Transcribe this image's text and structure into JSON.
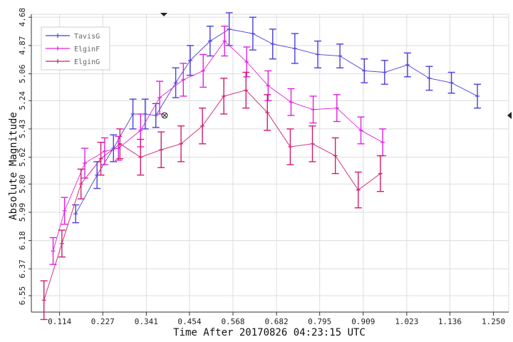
{
  "chart_data": {
    "type": "line",
    "xlabel": "Time After 20170826 04:23:15 UTC",
    "ylabel": "Absolute Magnitude",
    "xlim": [
      0.04,
      1.29
    ],
    "ylim": [
      6.66,
      4.66
    ],
    "y_inverted": true,
    "x_ticks": [
      "0.114",
      "0.227",
      "0.341",
      "0.454",
      "0.568",
      "0.682",
      "0.795",
      "0.909",
      "1.023",
      "1.136",
      "1.250"
    ],
    "y_ticks": [
      "4.68",
      "4.87",
      "5.06",
      "5.24",
      "5.43",
      "5.62",
      "5.80",
      "5.99",
      "6.18",
      "6.37",
      "6.55"
    ],
    "grid": true,
    "legend_position": "top-left",
    "colors": {
      "TavisG": "#4a3fdc",
      "ElginF": "#e020e0",
      "ElginG": "#d01c70",
      "grid": "#dcdcdc",
      "axis": "#333333"
    },
    "series": [
      {
        "name": "TavisG",
        "points": [
          {
            "x": 0.156,
            "y": 6.0,
            "err": 0.06
          },
          {
            "x": 0.212,
            "y": 5.74,
            "err": 0.09
          },
          {
            "x": 0.255,
            "y": 5.56,
            "err": 0.09
          },
          {
            "x": 0.306,
            "y": 5.33,
            "err": 0.1
          },
          {
            "x": 0.338,
            "y": 5.33,
            "err": 0.1
          },
          {
            "x": 0.366,
            "y": 5.34,
            "err": 0.08
          },
          {
            "x": 0.418,
            "y": 5.12,
            "err": 0.1
          },
          {
            "x": 0.456,
            "y": 4.97,
            "err": 0.1
          },
          {
            "x": 0.508,
            "y": 4.84,
            "err": 0.1
          },
          {
            "x": 0.558,
            "y": 4.76,
            "err": 0.11
          },
          {
            "x": 0.62,
            "y": 4.79,
            "err": 0.11
          },
          {
            "x": 0.672,
            "y": 4.86,
            "err": 0.1
          },
          {
            "x": 0.73,
            "y": 4.89,
            "err": 0.1
          },
          {
            "x": 0.79,
            "y": 4.93,
            "err": 0.09
          },
          {
            "x": 0.848,
            "y": 4.94,
            "err": 0.08
          },
          {
            "x": 0.912,
            "y": 5.04,
            "err": 0.08
          },
          {
            "x": 0.965,
            "y": 5.05,
            "err": 0.08
          },
          {
            "x": 1.025,
            "y": 5.0,
            "err": 0.08
          },
          {
            "x": 1.082,
            "y": 5.09,
            "err": 0.08
          },
          {
            "x": 1.14,
            "y": 5.12,
            "err": 0.07
          },
          {
            "x": 1.208,
            "y": 5.21,
            "err": 0.08
          }
        ]
      },
      {
        "name": "ElginF",
        "points": [
          {
            "x": 0.097,
            "y": 6.25,
            "err": 0.09
          },
          {
            "x": 0.127,
            "y": 5.98,
            "err": 0.09
          },
          {
            "x": 0.18,
            "y": 5.66,
            "err": 0.1
          },
          {
            "x": 0.232,
            "y": 5.58,
            "err": 0.09
          },
          {
            "x": 0.268,
            "y": 5.56,
            "err": 0.08
          },
          {
            "x": 0.326,
            "y": 5.44,
            "err": 0.11
          },
          {
            "x": 0.376,
            "y": 5.22,
            "err": 0.11
          },
          {
            "x": 0.438,
            "y": 5.1,
            "err": 0.11
          },
          {
            "x": 0.49,
            "y": 5.04,
            "err": 0.11
          },
          {
            "x": 0.546,
            "y": 4.84,
            "err": 0.1
          },
          {
            "x": 0.604,
            "y": 4.98,
            "err": 0.1
          },
          {
            "x": 0.66,
            "y": 5.14,
            "err": 0.1
          },
          {
            "x": 0.72,
            "y": 5.25,
            "err": 0.09
          },
          {
            "x": 0.778,
            "y": 5.3,
            "err": 0.09
          },
          {
            "x": 0.84,
            "y": 5.29,
            "err": 0.09
          },
          {
            "x": 0.903,
            "y": 5.44,
            "err": 0.09
          },
          {
            "x": 0.96,
            "y": 5.52,
            "err": 0.09
          }
        ]
      },
      {
        "name": "ElginG",
        "points": [
          {
            "x": 0.073,
            "y": 6.58,
            "err": 0.13
          },
          {
            "x": 0.12,
            "y": 6.2,
            "err": 0.09
          },
          {
            "x": 0.17,
            "y": 5.8,
            "err": 0.1
          },
          {
            "x": 0.222,
            "y": 5.63,
            "err": 0.11
          },
          {
            "x": 0.272,
            "y": 5.53,
            "err": 0.1
          },
          {
            "x": 0.326,
            "y": 5.62,
            "err": 0.12
          },
          {
            "x": 0.38,
            "y": 5.57,
            "err": 0.12
          },
          {
            "x": 0.432,
            "y": 5.53,
            "err": 0.12
          },
          {
            "x": 0.488,
            "y": 5.41,
            "err": 0.12
          },
          {
            "x": 0.544,
            "y": 5.21,
            "err": 0.12
          },
          {
            "x": 0.602,
            "y": 5.17,
            "err": 0.12
          },
          {
            "x": 0.658,
            "y": 5.32,
            "err": 0.12
          },
          {
            "x": 0.718,
            "y": 5.55,
            "err": 0.12
          },
          {
            "x": 0.776,
            "y": 5.53,
            "err": 0.12
          },
          {
            "x": 0.836,
            "y": 5.61,
            "err": 0.12
          },
          {
            "x": 0.896,
            "y": 5.84,
            "err": 0.12
          },
          {
            "x": 0.954,
            "y": 5.73,
            "err": 0.12
          }
        ]
      }
    ]
  }
}
